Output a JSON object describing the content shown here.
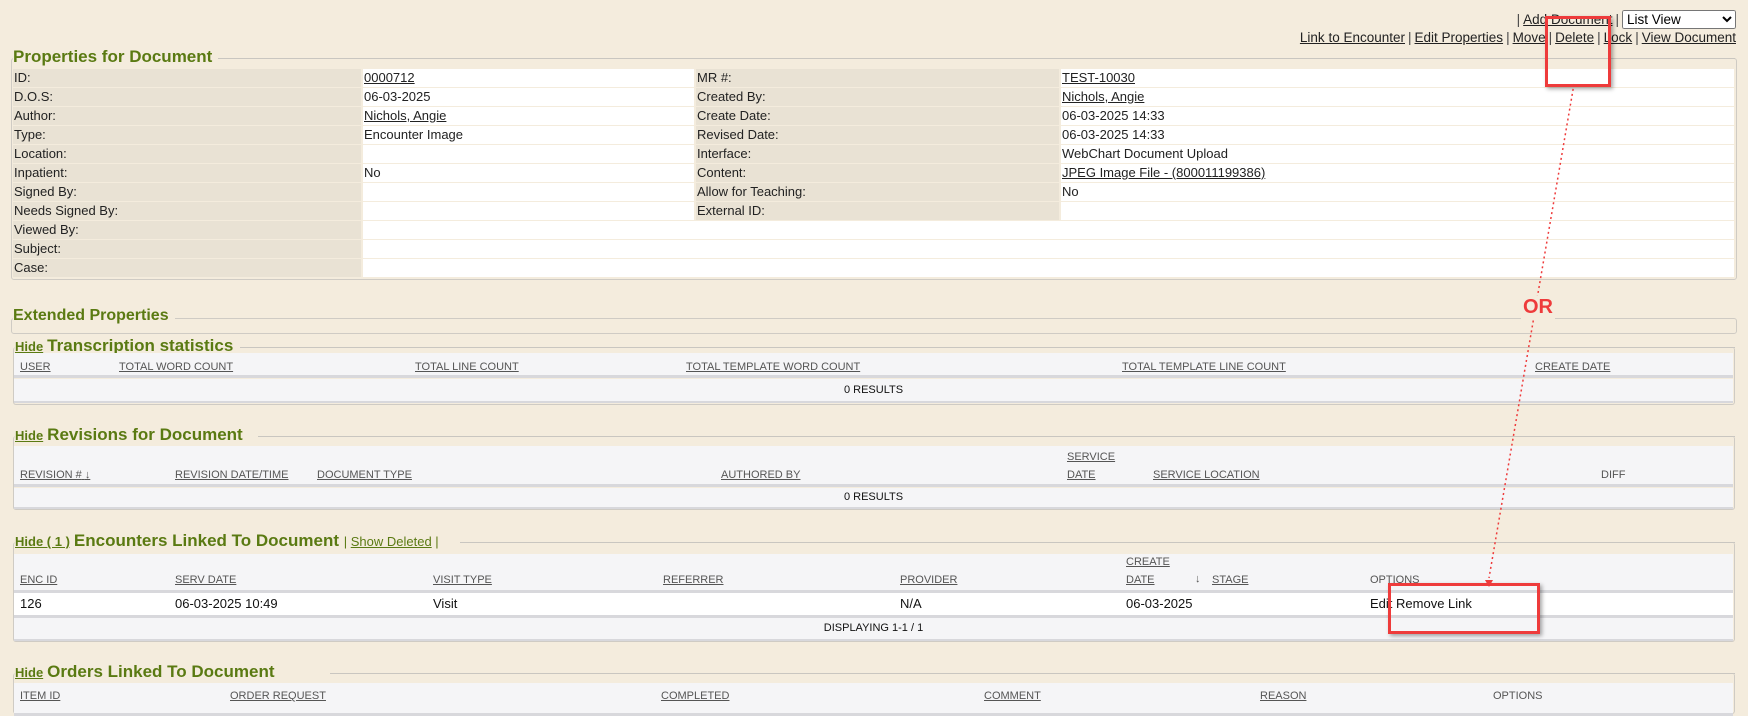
{
  "toolbar": {
    "add_document": "Add Document",
    "view_select": "List View",
    "links": [
      "Link to Encounter",
      "Edit Properties",
      "Move",
      "Delete",
      "Lock",
      "View Document"
    ]
  },
  "properties": {
    "title": "Properties for Document",
    "rows": [
      {
        "label": "ID:",
        "value": "0000712",
        "link": true,
        "label2": "MR #:",
        "value2": "TEST-10030",
        "link2": true
      },
      {
        "label": "D.O.S:",
        "value": "06-03-2025",
        "label2": "Created By:",
        "value2": "Nichols, Angie",
        "link2": true
      },
      {
        "label": "Author:",
        "value": "Nichols, Angie",
        "link": true,
        "label2": "Create Date:",
        "value2": "06-03-2025 14:33"
      },
      {
        "label": "Type:",
        "value": "Encounter Image",
        "label2": "Revised Date:",
        "value2": "06-03-2025 14:33"
      },
      {
        "label": "Location:",
        "value": "",
        "label2": "Interface:",
        "value2": "WebChart Document Upload"
      },
      {
        "label": "Inpatient:",
        "value": "No",
        "label2": "Content:",
        "value2": "JPEG Image File - (800011199386)",
        "link2": true
      },
      {
        "label": "Signed By:",
        "value": "",
        "label2": "Allow for Teaching:",
        "value2": "No"
      },
      {
        "label": "Needs Signed By:",
        "value": "",
        "label2": "External ID:",
        "value2": ""
      },
      {
        "label": "Viewed By:",
        "value": ""
      },
      {
        "label": "Subject:",
        "value": ""
      },
      {
        "label": "Case:",
        "value": ""
      }
    ]
  },
  "extended": {
    "title": "Extended Properties"
  },
  "transcription": {
    "hide": "Hide",
    "title": "Transcription statistics",
    "columns": [
      "USER",
      "TOTAL WORD COUNT",
      "TOTAL LINE COUNT",
      "TOTAL TEMPLATE WORD COUNT",
      "TOTAL TEMPLATE LINE COUNT",
      "CREATE DATE"
    ],
    "results": "0 RESULTS"
  },
  "revisions": {
    "hide": "Hide",
    "title": "Revisions for Document",
    "columns": [
      "REVISION #",
      "REVISION DATE/TIME",
      "DOCUMENT TYPE",
      "AUTHORED BY",
      "SERVICE",
      "DATE",
      "SERVICE LOCATION",
      "DIFF"
    ],
    "results": "0 RESULTS"
  },
  "encounters": {
    "hide": "Hide ( 1 )",
    "title": "Encounters Linked To Document",
    "show_deleted": "Show Deleted",
    "columns": [
      "ENC ID",
      "SERV DATE",
      "VISIT TYPE",
      "REFERRER",
      "PROVIDER",
      "CREATE",
      "DATE",
      "STAGE",
      "OPTIONS"
    ],
    "rows": [
      {
        "enc_id": "126",
        "serv_date": "06-03-2025 10:49",
        "visit_type": "Visit",
        "referrer": "",
        "provider": "N/A",
        "create_date": "06-03-2025",
        "stage": "",
        "edit": "Edit",
        "remove": "Remove Link"
      }
    ],
    "displaying": "DISPLAYING 1-1 / 1"
  },
  "orders": {
    "hide": "Hide",
    "title": "Orders Linked To Document",
    "columns": [
      "ITEM ID",
      "ORDER REQUEST",
      "COMPLETED",
      "COMMENT",
      "REASON",
      "OPTIONS"
    ]
  },
  "annotation": {
    "or_label": "OR",
    "color": "#ee3b3b"
  }
}
